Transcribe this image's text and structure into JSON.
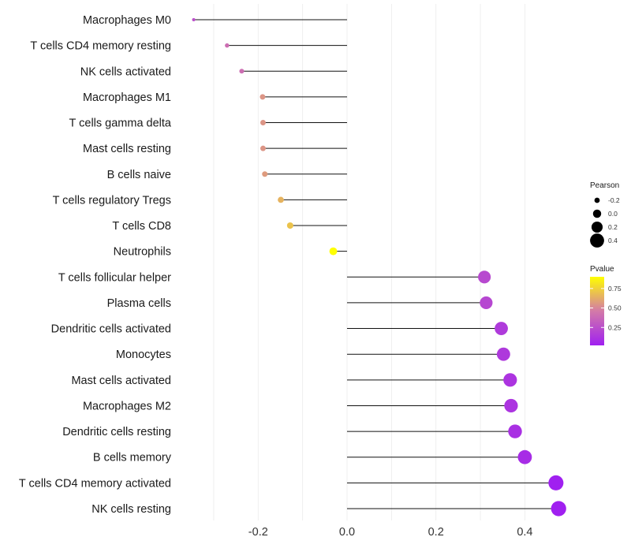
{
  "chart_data": {
    "type": "lollipop",
    "title": "",
    "xlabel": "",
    "ylabel": "",
    "xlim": [
      -0.345,
      0.5
    ],
    "xticks": [
      -0.2,
      0.0,
      0.2,
      0.4
    ],
    "xtick_labels": [
      "-0.2",
      "0.0",
      "0.2",
      "0.4"
    ],
    "grid": true,
    "categories": [
      "Macrophages M0",
      "T cells CD4 memory resting",
      "NK cells activated",
      "Macrophages M1",
      "T cells gamma delta",
      "Mast cells resting",
      "B cells naive",
      "T cells regulatory  Tregs",
      "T cells CD8",
      "Neutrophils",
      "T cells follicular helper",
      "Plasma cells",
      "Dendritic cells activated",
      "Monocytes",
      "Mast cells activated",
      "Macrophages M2",
      "Dendritic cells resting",
      "B cells memory",
      "T cells CD4 memory activated",
      "NK cells resting"
    ],
    "values": [
      -0.345,
      -0.27,
      -0.237,
      -0.19,
      -0.189,
      -0.189,
      -0.185,
      -0.149,
      -0.128,
      -0.031,
      0.309,
      0.313,
      0.347,
      0.352,
      0.367,
      0.369,
      0.378,
      0.4,
      0.47,
      0.476
    ],
    "pvalues": [
      0.25,
      0.4,
      0.4,
      0.55,
      0.55,
      0.55,
      0.57,
      0.65,
      0.7,
      0.9,
      0.22,
      0.21,
      0.15,
      0.14,
      0.12,
      0.12,
      0.1,
      0.08,
      0.02,
      0.02
    ],
    "legend_position": "right",
    "size_legend": {
      "title": "Pearson",
      "items": [
        {
          "label": "-0.2",
          "value": -0.2
        },
        {
          "label": "0.0",
          "value": 0.0
        },
        {
          "label": "0.2",
          "value": 0.2
        },
        {
          "label": "0.4",
          "value": 0.4
        }
      ]
    },
    "color_legend": {
      "title": "Pvalue",
      "ticks": [
        {
          "label": "0.75",
          "value": 0.75
        },
        {
          "label": "0.50",
          "value": 0.5
        },
        {
          "label": "0.25",
          "value": 0.25
        }
      ],
      "range": [
        0.02,
        0.9
      ],
      "low_color": "#a020f0",
      "mid_color": "#d37aa8",
      "high_color": "#ffff00"
    }
  }
}
